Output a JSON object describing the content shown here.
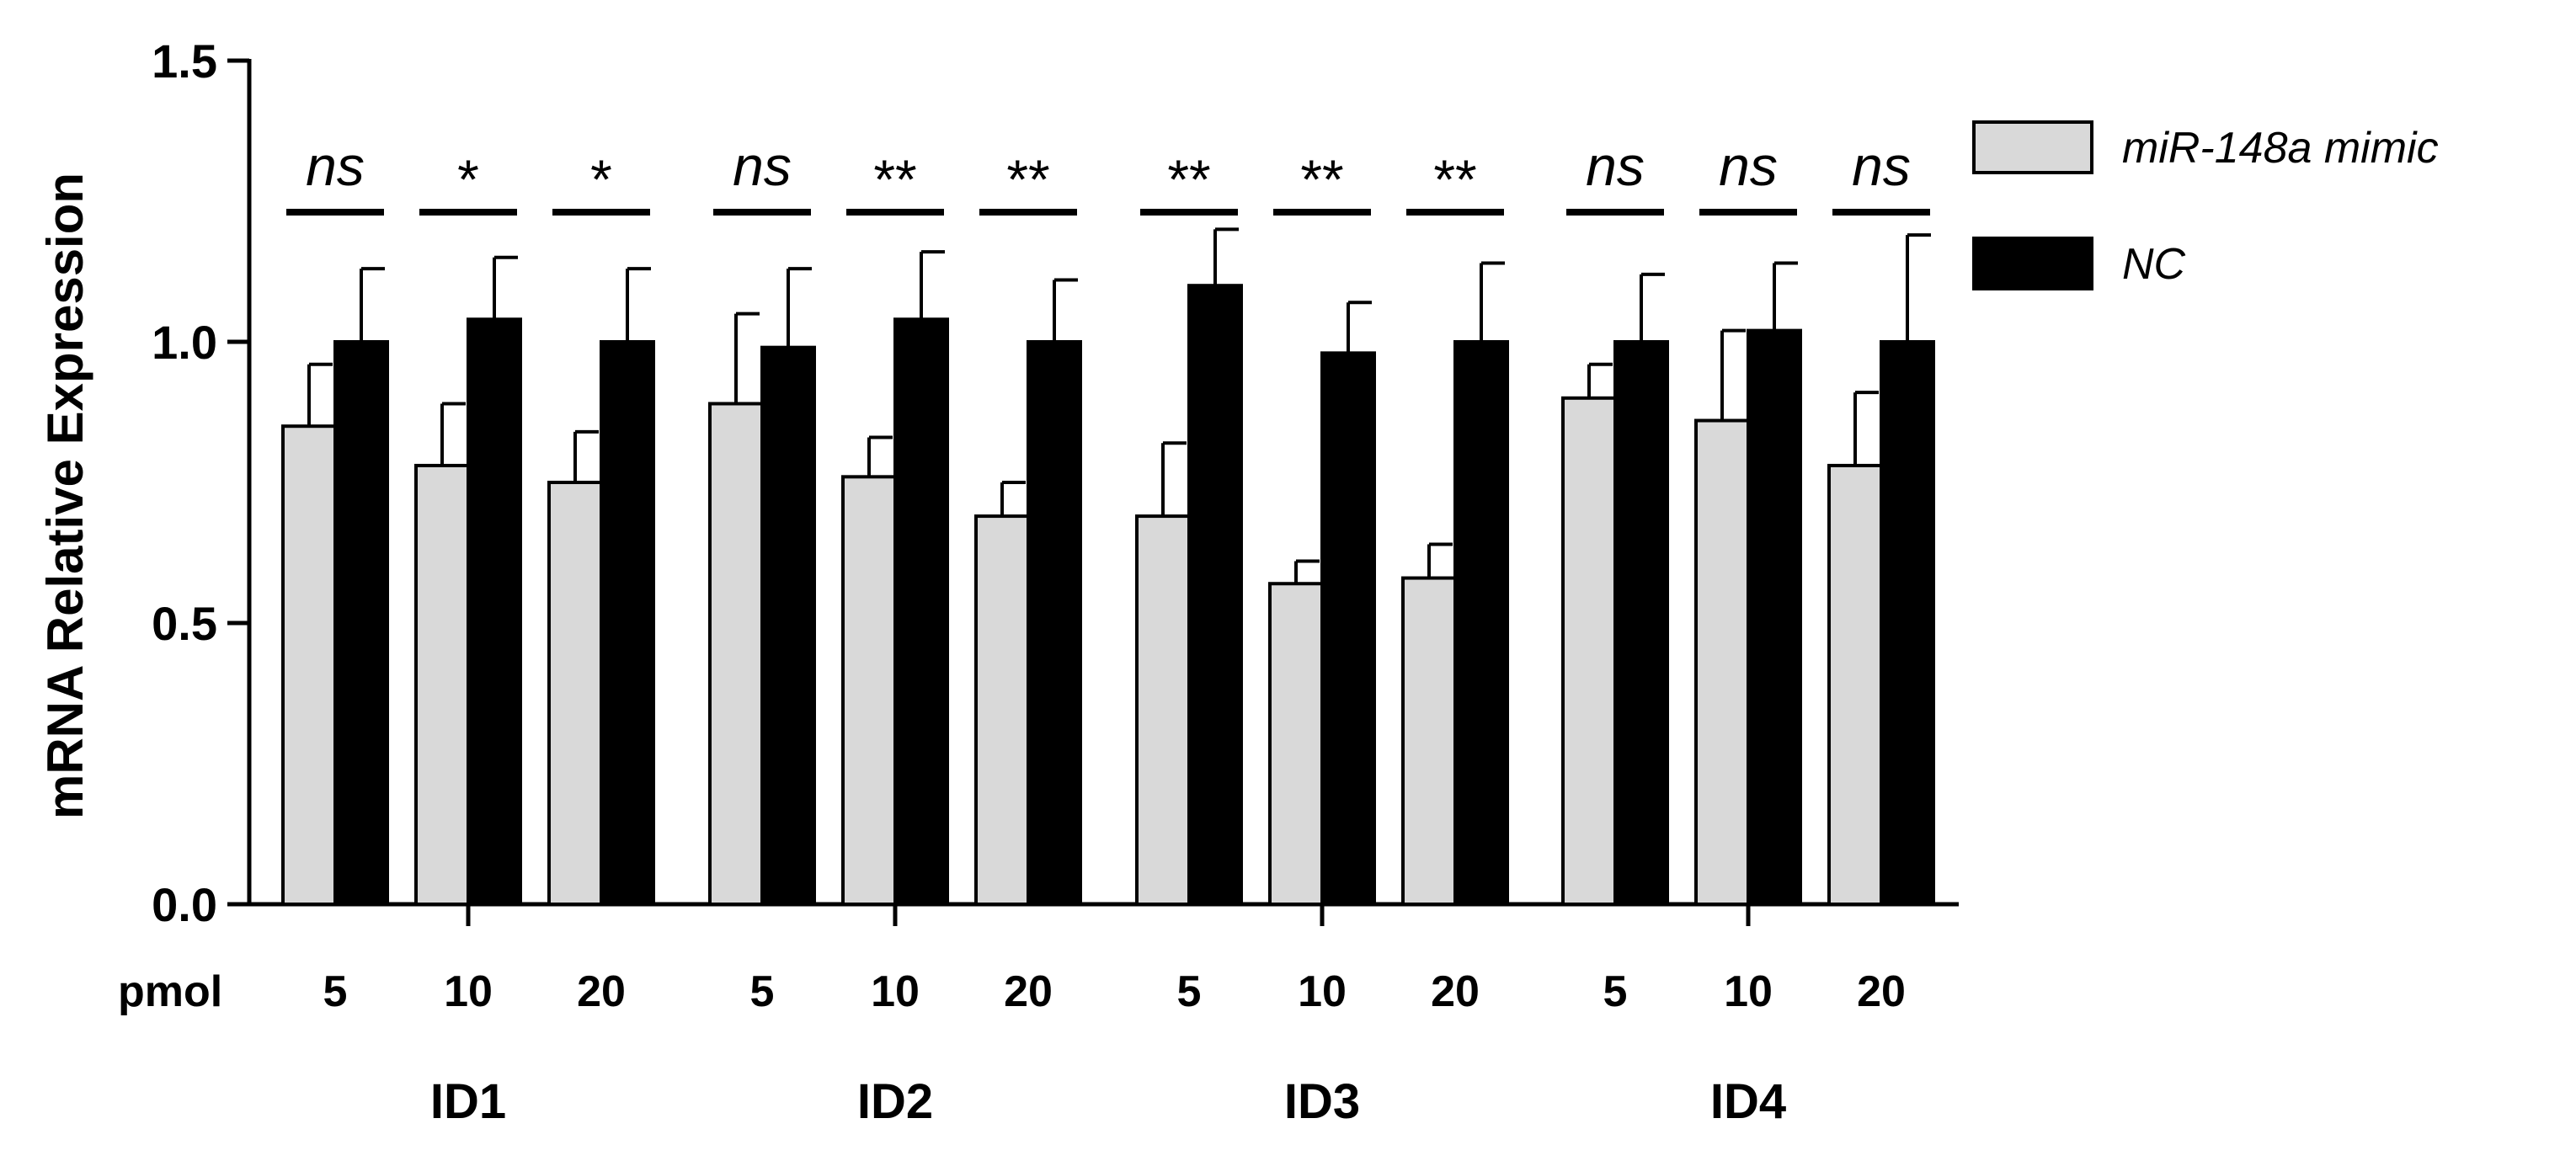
{
  "chart_data": {
    "type": "bar",
    "ylabel": "mRNA Relative Expression",
    "ylim": [
      0,
      1.5
    ],
    "yticks": [
      "0.0",
      "0.5",
      "1.0",
      "1.5"
    ],
    "condition_axis_label": "pmol",
    "groups": [
      {
        "label": "ID1",
        "doses": [
          "5",
          "10",
          "20"
        ]
      },
      {
        "label": "ID2",
        "doses": [
          "5",
          "10",
          "20"
        ]
      },
      {
        "label": "ID3",
        "doses": [
          "5",
          "10",
          "20"
        ]
      },
      {
        "label": "ID4",
        "doses": [
          "5",
          "10",
          "20"
        ]
      }
    ],
    "series": [
      {
        "name": "miR-148a mimic",
        "color": "#d9d9d9",
        "values": [
          0.85,
          0.78,
          0.75,
          0.89,
          0.76,
          0.69,
          0.69,
          0.57,
          0.58,
          0.9,
          0.86,
          0.78
        ],
        "errors": [
          0.11,
          0.11,
          0.09,
          0.16,
          0.07,
          0.06,
          0.13,
          0.04,
          0.06,
          0.06,
          0.16,
          0.13
        ]
      },
      {
        "name": "NC",
        "color": "#000000",
        "values": [
          1.0,
          1.04,
          1.0,
          0.99,
          1.04,
          1.0,
          1.1,
          0.98,
          1.0,
          1.0,
          1.02,
          1.0
        ],
        "errors": [
          0.13,
          0.11,
          0.13,
          0.14,
          0.12,
          0.11,
          0.1,
          0.09,
          0.14,
          0.12,
          0.12,
          0.19
        ]
      }
    ],
    "significance": [
      "ns",
      "*",
      "*",
      "ns",
      "**",
      "**",
      "**",
      "**",
      "**",
      "ns",
      "ns",
      "ns"
    ],
    "legend_position": "top-right",
    "grid": false
  }
}
